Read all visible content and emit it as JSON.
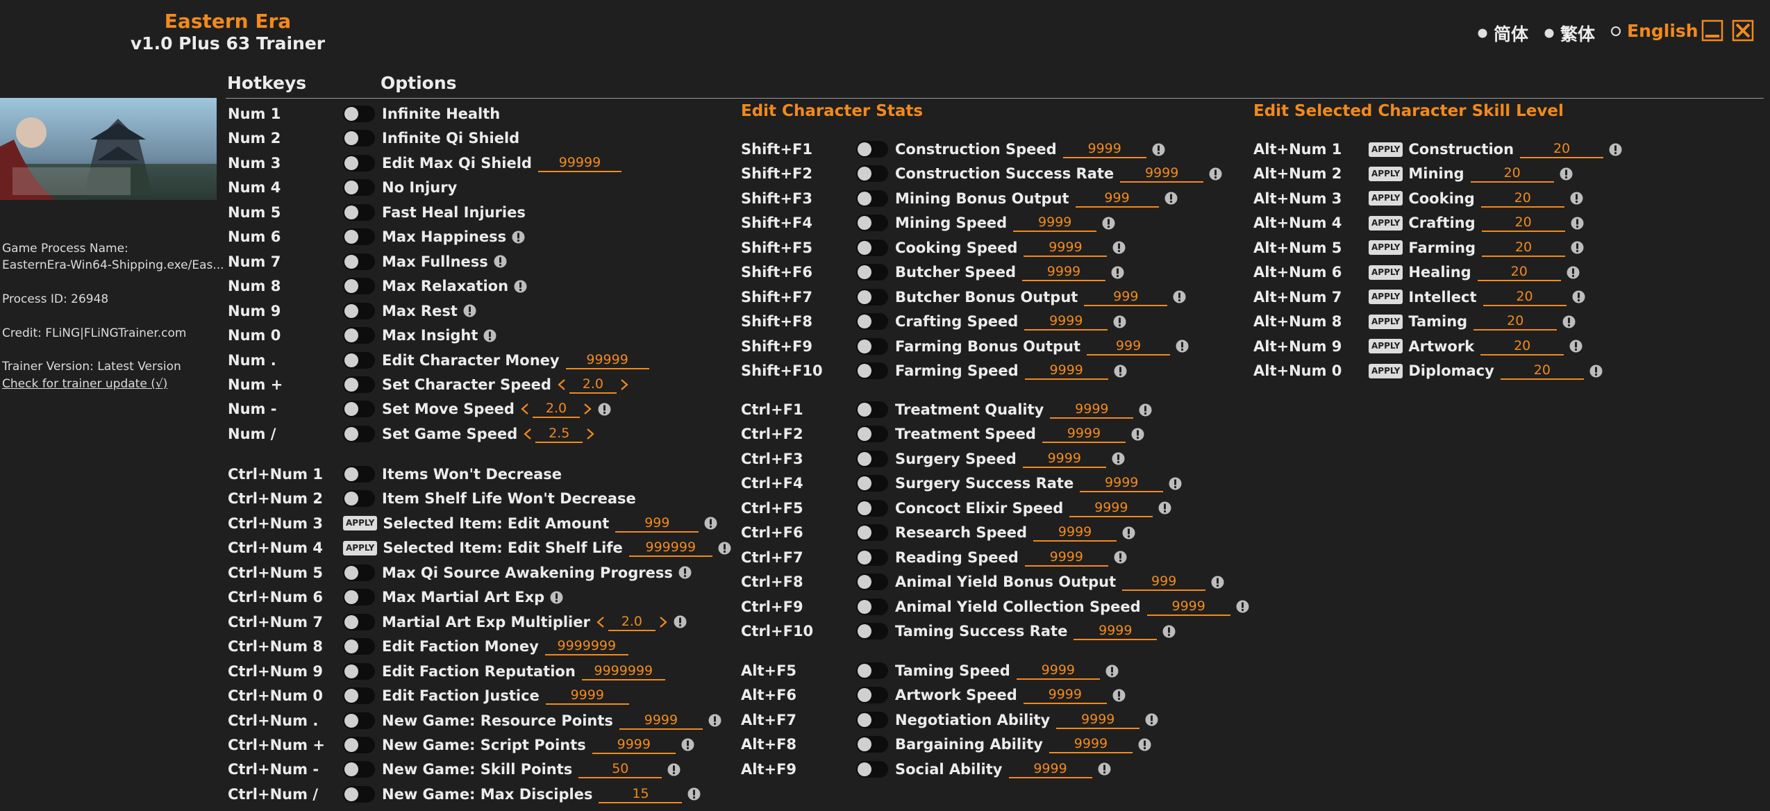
{
  "header": {
    "title": "Eastern Era",
    "subtitle": "v1.0 Plus 63 Trainer"
  },
  "languages": {
    "options": [
      "简体",
      "繁体",
      "English"
    ],
    "selected": 2
  },
  "columns": {
    "hotkeys": "Hotkeys",
    "options": "Options"
  },
  "apply_label": "APPLY",
  "sidebar": {
    "process_label": "Game Process Name:",
    "process": "EasternEra-Win64-Shipping.exe/Eas...",
    "pid": "Process ID: 26948",
    "credit": "Credit: FLiNG|FLiNGTrainer.com",
    "version": "Trainer Version: Latest Version",
    "update": "Check for trainer update (√)"
  },
  "sections": [
    {
      "groups": [
        [
          {
            "hotkey": "Num 1",
            "label": "Infinite Health"
          },
          {
            "hotkey": "Num 2",
            "label": "Infinite Qi Shield"
          },
          {
            "hotkey": "Num 3",
            "label": "Edit Max Qi Shield",
            "value": "99999"
          },
          {
            "hotkey": "Num 4",
            "label": "No Injury"
          },
          {
            "hotkey": "Num 5",
            "label": "Fast Heal Injuries"
          },
          {
            "hotkey": "Num 6",
            "label": "Max Happiness",
            "info": true
          },
          {
            "hotkey": "Num 7",
            "label": "Max Fullness",
            "info": true
          },
          {
            "hotkey": "Num 8",
            "label": "Max Relaxation",
            "info": true
          },
          {
            "hotkey": "Num 9",
            "label": "Max Rest",
            "info": true
          },
          {
            "hotkey": "Num 0",
            "label": "Max Insight",
            "info": true
          },
          {
            "hotkey": "Num .",
            "label": "Edit Character Money",
            "value": "99999"
          },
          {
            "hotkey": "Num +",
            "label": "Set Character Speed",
            "value": "2.0",
            "stepper": true
          },
          {
            "hotkey": "Num -",
            "label": "Set Move Speed",
            "value": "2.0",
            "stepper": true,
            "info": true
          },
          {
            "hotkey": "Num /",
            "label": "Set Game Speed",
            "value": "2.5",
            "stepper": true
          }
        ],
        [
          {
            "hotkey": "Ctrl+Num 1",
            "label": "Items Won't Decrease"
          },
          {
            "hotkey": "Ctrl+Num 2",
            "label": "Item Shelf Life Won't Decrease"
          },
          {
            "hotkey": "Ctrl+Num 3",
            "label": "Selected Item: Edit Amount",
            "value": "999",
            "control": "apply",
            "info": true
          },
          {
            "hotkey": "Ctrl+Num 4",
            "label": "Selected Item: Edit Shelf Life",
            "value": "999999",
            "control": "apply",
            "info": true
          },
          {
            "hotkey": "Ctrl+Num 5",
            "label": "Max Qi Source Awakening Progress",
            "info": true
          },
          {
            "hotkey": "Ctrl+Num 6",
            "label": "Max Martial Art Exp",
            "info": true
          },
          {
            "hotkey": "Ctrl+Num 7",
            "label": "Martial Art Exp Multiplier",
            "value": "2.0",
            "stepper": true,
            "info": true
          },
          {
            "hotkey": "Ctrl+Num 8",
            "label": "Edit Faction Money",
            "value": "9999999"
          },
          {
            "hotkey": "Ctrl+Num 9",
            "label": "Edit Faction Reputation",
            "value": "9999999"
          },
          {
            "hotkey": "Ctrl+Num 0",
            "label": "Edit Faction Justice",
            "value": "9999"
          },
          {
            "hotkey": "Ctrl+Num .",
            "label": "New Game: Resource Points",
            "value": "9999",
            "info": true
          },
          {
            "hotkey": "Ctrl+Num +",
            "label": "New Game: Script Points",
            "value": "9999",
            "info": true
          },
          {
            "hotkey": "Ctrl+Num -",
            "label": "New Game: Skill Points",
            "value": "50",
            "info": true
          },
          {
            "hotkey": "Ctrl+Num /",
            "label": "New Game: Max Disciples",
            "value": "15",
            "info": true
          }
        ]
      ]
    },
    {
      "title": "Edit Character Stats",
      "groups": [
        [
          {
            "hotkey": "Shift+F1",
            "label": "Construction Speed",
            "value": "9999",
            "info": true
          },
          {
            "hotkey": "Shift+F2",
            "label": "Construction Success Rate",
            "value": "9999",
            "info": true
          },
          {
            "hotkey": "Shift+F3",
            "label": "Mining Bonus Output",
            "value": "999",
            "info": true
          },
          {
            "hotkey": "Shift+F4",
            "label": "Mining Speed",
            "value": "9999",
            "info": true
          },
          {
            "hotkey": "Shift+F5",
            "label": "Cooking Speed",
            "value": "9999",
            "info": true
          },
          {
            "hotkey": "Shift+F6",
            "label": "Butcher Speed",
            "value": "9999",
            "info": true
          },
          {
            "hotkey": "Shift+F7",
            "label": "Butcher Bonus Output",
            "value": "999",
            "info": true
          },
          {
            "hotkey": "Shift+F8",
            "label": "Crafting Speed",
            "value": "9999",
            "info": true
          },
          {
            "hotkey": "Shift+F9",
            "label": "Farming Bonus Output",
            "value": "999",
            "info": true
          },
          {
            "hotkey": "Shift+F10",
            "label": "Farming Speed",
            "value": "9999",
            "info": true
          }
        ],
        [
          {
            "hotkey": "Ctrl+F1",
            "label": "Treatment Quality",
            "value": "9999",
            "info": true
          },
          {
            "hotkey": "Ctrl+F2",
            "label": "Treatment Speed",
            "value": "9999",
            "info": true
          },
          {
            "hotkey": "Ctrl+F3",
            "label": "Surgery Speed",
            "value": "9999",
            "info": true
          },
          {
            "hotkey": "Ctrl+F4",
            "label": "Surgery Success Rate",
            "value": "9999",
            "info": true
          },
          {
            "hotkey": "Ctrl+F5",
            "label": "Concoct Elixir Speed",
            "value": "9999",
            "info": true
          },
          {
            "hotkey": "Ctrl+F6",
            "label": "Research Speed",
            "value": "9999",
            "info": true
          },
          {
            "hotkey": "Ctrl+F7",
            "label": "Reading Speed",
            "value": "9999",
            "info": true
          },
          {
            "hotkey": "Ctrl+F8",
            "label": "Animal Yield Bonus Output",
            "value": "999",
            "info": true
          },
          {
            "hotkey": "Ctrl+F9",
            "label": "Animal Yield Collection Speed",
            "value": "9999",
            "info": true
          },
          {
            "hotkey": "Ctrl+F10",
            "label": "Taming Success Rate",
            "value": "9999",
            "info": true
          }
        ],
        [
          {
            "hotkey": "Alt+F5",
            "label": "Taming Speed",
            "value": "9999",
            "info": true
          },
          {
            "hotkey": "Alt+F6",
            "label": "Artwork Speed",
            "value": "9999",
            "info": true
          },
          {
            "hotkey": "Alt+F7",
            "label": "Negotiation Ability",
            "value": "9999",
            "info": true
          },
          {
            "hotkey": "Alt+F8",
            "label": "Bargaining Ability",
            "value": "9999",
            "info": true
          },
          {
            "hotkey": "Alt+F9",
            "label": "Social Ability",
            "value": "9999",
            "info": true
          }
        ]
      ]
    },
    {
      "title": "Edit Selected Character Skill Level",
      "groups": [
        [
          {
            "hotkey": "Alt+Num 1",
            "label": "Construction",
            "value": "20",
            "control": "apply",
            "info": true
          },
          {
            "hotkey": "Alt+Num 2",
            "label": "Mining",
            "value": "20",
            "control": "apply",
            "info": true
          },
          {
            "hotkey": "Alt+Num 3",
            "label": "Cooking",
            "value": "20",
            "control": "apply",
            "info": true
          },
          {
            "hotkey": "Alt+Num 4",
            "label": "Crafting",
            "value": "20",
            "control": "apply",
            "info": true
          },
          {
            "hotkey": "Alt+Num 5",
            "label": "Farming",
            "value": "20",
            "control": "apply",
            "info": true
          },
          {
            "hotkey": "Alt+Num 6",
            "label": "Healing",
            "value": "20",
            "control": "apply",
            "info": true
          },
          {
            "hotkey": "Alt+Num 7",
            "label": "Intellect",
            "value": "20",
            "control": "apply",
            "info": true
          },
          {
            "hotkey": "Alt+Num 8",
            "label": "Taming",
            "value": "20",
            "control": "apply",
            "info": true
          },
          {
            "hotkey": "Alt+Num 9",
            "label": "Artwork",
            "value": "20",
            "control": "apply",
            "info": true
          },
          {
            "hotkey": "Alt+Num 0",
            "label": "Diplomacy",
            "value": "20",
            "control": "apply",
            "info": true
          }
        ]
      ]
    }
  ]
}
